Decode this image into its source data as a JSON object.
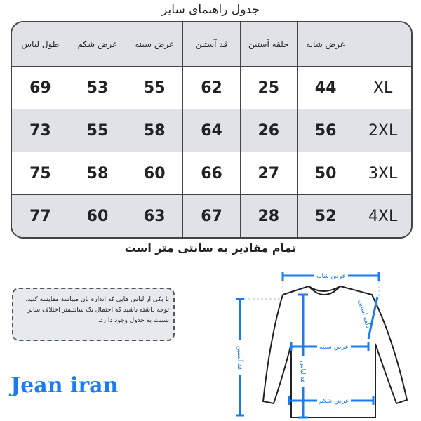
{
  "title": "جدول راهنمای سایز",
  "table": {
    "headers": [
      "",
      "عرض شانه",
      "حلقه آستین",
      "قد آستین",
      "عرض سینه",
      "عرض شکم",
      "طول لباس"
    ],
    "rows": [
      {
        "size": "XL",
        "values": [
          "44",
          "25",
          "62",
          "55",
          "53",
          "69"
        ]
      },
      {
        "size": "2XL",
        "values": [
          "56",
          "26",
          "64",
          "58",
          "55",
          "73"
        ]
      },
      {
        "size": "3XL",
        "values": [
          "50",
          "27",
          "66",
          "60",
          "58",
          "75"
        ]
      },
      {
        "size": "4XL",
        "values": [
          "52",
          "28",
          "67",
          "63",
          "60",
          "77"
        ]
      }
    ]
  },
  "subtitle": "تمام مقادیر به سانتی متر است",
  "note": {
    "line1": "با یکی از لباس هایی که اندازه تان میباشد مقایسه کنید.",
    "line2": "توجه داشته باشید که احتمال یک سانتیمتر اختلاف سایز نسبت به جدول وجود دا رد."
  },
  "diagram": {
    "shoulder": "عرض شانه",
    "armhole": "حلقه آستین",
    "chest": "عرض سینه",
    "length": "قد لباس",
    "sleeve": "قد آستین",
    "belly": "عرض شکم"
  },
  "logo": "Jean iran",
  "colors": {
    "accent": "#1a7cf0",
    "shade": "#dfe3e8"
  }
}
